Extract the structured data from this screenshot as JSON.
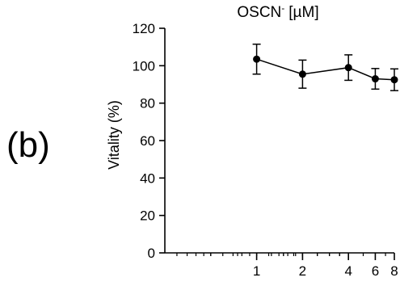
{
  "panel_label": "(b)",
  "chart_data": {
    "type": "line",
    "title": "OSCN",
    "title_superscript": "-",
    "title_unit": "[µM]",
    "xlabel": "",
    "ylabel": "Vitality (%)",
    "x_scale": "log2",
    "xlim": [
      0.25,
      8
    ],
    "ylim": [
      0,
      120
    ],
    "x_ticks": [
      1,
      2,
      4,
      6,
      8
    ],
    "x_tick_labels": [
      "1",
      "2",
      "4",
      "6",
      "8"
    ],
    "y_ticks": [
      0,
      20,
      40,
      60,
      80,
      100,
      120
    ],
    "y_tick_labels": [
      "0",
      "20",
      "40",
      "60",
      "80",
      "100",
      "120"
    ],
    "grid": false,
    "legend": "none",
    "series": [
      {
        "x": [
          1,
          2,
          4,
          6,
          8
        ],
        "y": [
          103.5,
          95.5,
          99.0,
          93.0,
          92.5
        ],
        "error": [
          8.0,
          7.5,
          6.8,
          5.5,
          5.8
        ],
        "color": "#000000",
        "marker": "circle"
      }
    ]
  }
}
